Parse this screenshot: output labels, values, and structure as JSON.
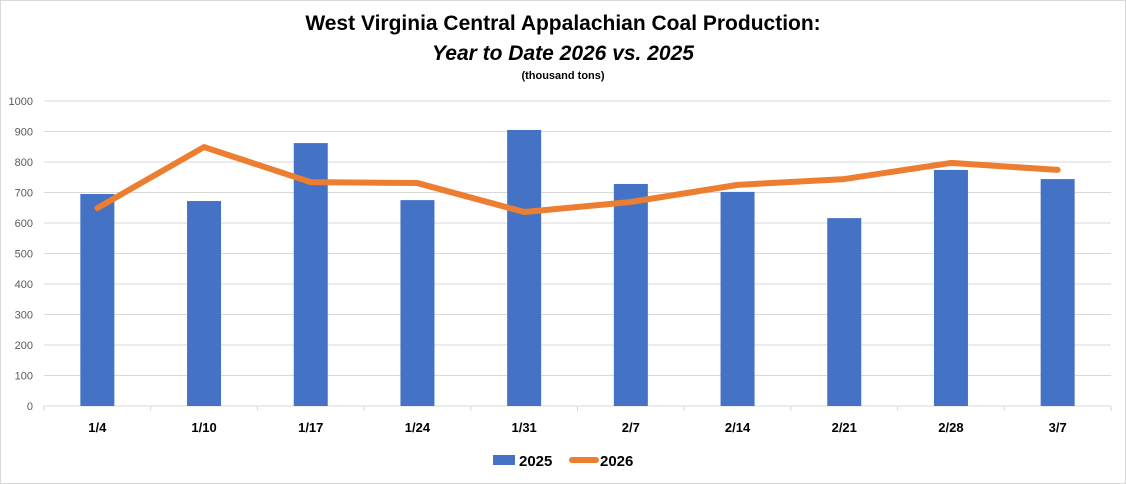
{
  "chart_data": {
    "type": "bar+line",
    "title": "West Virginia Central Appalachian Coal Production:",
    "subtitle": "Year to Date 2026 vs. 2025",
    "ylabel": "(thousand tons)",
    "xlabel": "",
    "categories": [
      "1/4",
      "1/10",
      "1/17",
      "1/24",
      "1/31",
      "2/7",
      "2/14",
      "2/21",
      "2/28",
      "3/7"
    ],
    "ylim": [
      0,
      1000
    ],
    "yticks": [
      0,
      100,
      200,
      300,
      400,
      500,
      600,
      700,
      800,
      900,
      1000
    ],
    "grid": true,
    "legend_position": "bottom",
    "series": [
      {
        "name": "2025",
        "type": "bar",
        "color": "#4472c4",
        "values": [
          695,
          672,
          862,
          675,
          905,
          728,
          702,
          616,
          774,
          744
        ]
      },
      {
        "name": "2026",
        "type": "line",
        "color": "#ed7d31",
        "values": [
          649,
          849,
          734,
          731,
          636,
          669,
          725,
          744,
          797,
          774
        ]
      }
    ]
  }
}
